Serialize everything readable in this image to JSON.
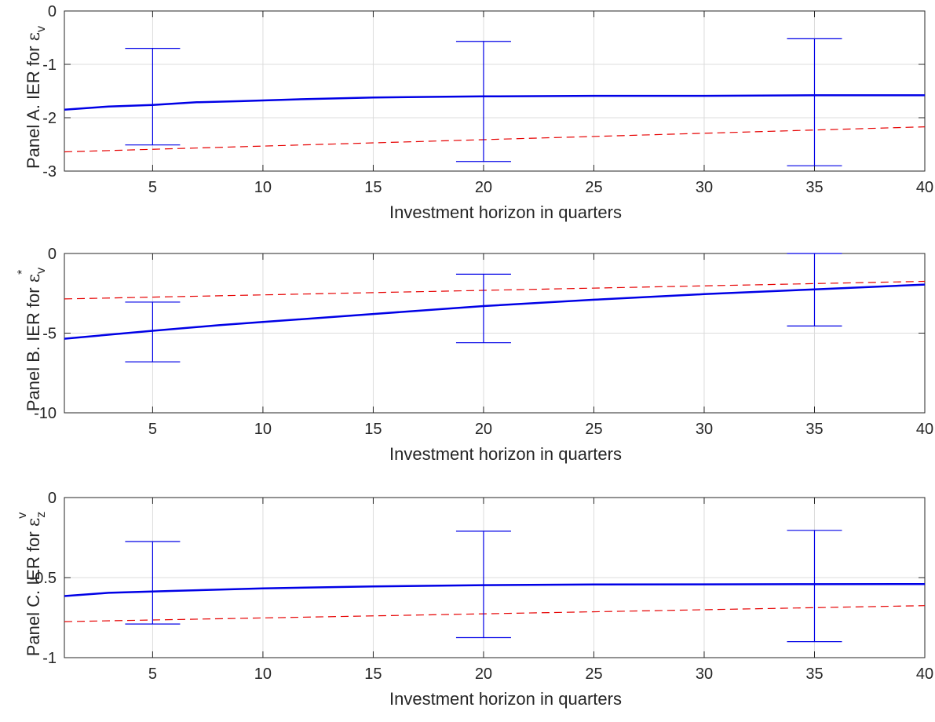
{
  "colors": {
    "solid": "#0000e6",
    "dashed": "#e60000",
    "errorbar": "#0000e6",
    "grid": "#dcdcdc",
    "axis": "#262626"
  },
  "chart_data": [
    {
      "type": "line",
      "ylabel": {
        "text": "Panel A. IER for ",
        "symbol": "ε",
        "sub": "v",
        "sup": ""
      },
      "xlabel": "Investment horizon in quarters",
      "xlim": [
        1,
        40
      ],
      "ylim": [
        -3,
        0
      ],
      "xticks": [
        5,
        10,
        15,
        20,
        25,
        30,
        35,
        40
      ],
      "yticks": [
        0,
        -1,
        -2,
        -3
      ],
      "ytick_labels": [
        "0",
        "-1",
        "-2",
        "-3"
      ],
      "grid": true,
      "series": [
        {
          "style": "solid",
          "x": [
            1,
            3,
            5,
            7,
            9,
            12,
            15,
            20,
            25,
            30,
            35,
            40
          ],
          "y": [
            -1.85,
            -1.79,
            -1.76,
            -1.71,
            -1.69,
            -1.65,
            -1.62,
            -1.6,
            -1.59,
            -1.59,
            -1.58,
            -1.58
          ]
        },
        {
          "style": "dashed",
          "x": [
            1,
            40
          ],
          "y": [
            -2.64,
            -2.17
          ]
        }
      ],
      "error_bars": [
        {
          "x": 5,
          "low": -2.51,
          "high": -0.7
        },
        {
          "x": 20,
          "low": -2.82,
          "high": -0.57
        },
        {
          "x": 35,
          "low": -2.9,
          "high": -0.52
        }
      ]
    },
    {
      "type": "line",
      "ylabel": {
        "text": "Panel B. IER for ",
        "symbol": "ε",
        "sub": "v",
        "sup": "*"
      },
      "xlabel": "Investment horizon in quarters",
      "xlim": [
        1,
        40
      ],
      "ylim": [
        -10,
        0
      ],
      "xticks": [
        5,
        10,
        15,
        20,
        25,
        30,
        35,
        40
      ],
      "yticks": [
        0,
        -5,
        -10
      ],
      "ytick_labels": [
        "0",
        "-5",
        "-10"
      ],
      "grid": true,
      "series": [
        {
          "style": "solid",
          "x": [
            1,
            5,
            8,
            10,
            15,
            20,
            25,
            30,
            35,
            40
          ],
          "y": [
            -5.35,
            -4.85,
            -4.5,
            -4.3,
            -3.8,
            -3.3,
            -2.9,
            -2.55,
            -2.25,
            -1.95
          ]
        },
        {
          "style": "dashed",
          "x": [
            1,
            40
          ],
          "y": [
            -2.85,
            -1.75
          ]
        }
      ],
      "error_bars": [
        {
          "x": 5,
          "low": -6.8,
          "high": -3.05
        },
        {
          "x": 20,
          "low": -5.6,
          "high": -1.3
        },
        {
          "x": 35,
          "low": -4.55,
          "high": 0.0
        }
      ]
    },
    {
      "type": "line",
      "ylabel": {
        "text": "Panel C. IER for ",
        "symbol": "ε",
        "sub": "z",
        "sup": "v"
      },
      "xlabel": "Investment horizon in quarters",
      "xlim": [
        1,
        40
      ],
      "ylim": [
        -1,
        0
      ],
      "xticks": [
        5,
        10,
        15,
        20,
        25,
        30,
        35,
        40
      ],
      "yticks": [
        0,
        -0.5,
        -1
      ],
      "ytick_labels": [
        "0",
        "-0.5",
        "-1"
      ],
      "grid": true,
      "series": [
        {
          "style": "solid",
          "x": [
            1,
            3,
            6,
            10,
            15,
            20,
            25,
            30,
            35,
            40
          ],
          "y": [
            -0.615,
            -0.595,
            -0.583,
            -0.567,
            -0.555,
            -0.547,
            -0.543,
            -0.542,
            -0.541,
            -0.54
          ]
        },
        {
          "style": "dashed",
          "x": [
            1,
            40
          ],
          "y": [
            -0.775,
            -0.675
          ]
        }
      ],
      "error_bars": [
        {
          "x": 5,
          "low": -0.79,
          "high": -0.275
        },
        {
          "x": 20,
          "low": -0.875,
          "high": -0.21
        },
        {
          "x": 35,
          "low": -0.9,
          "high": -0.205
        }
      ]
    }
  ]
}
